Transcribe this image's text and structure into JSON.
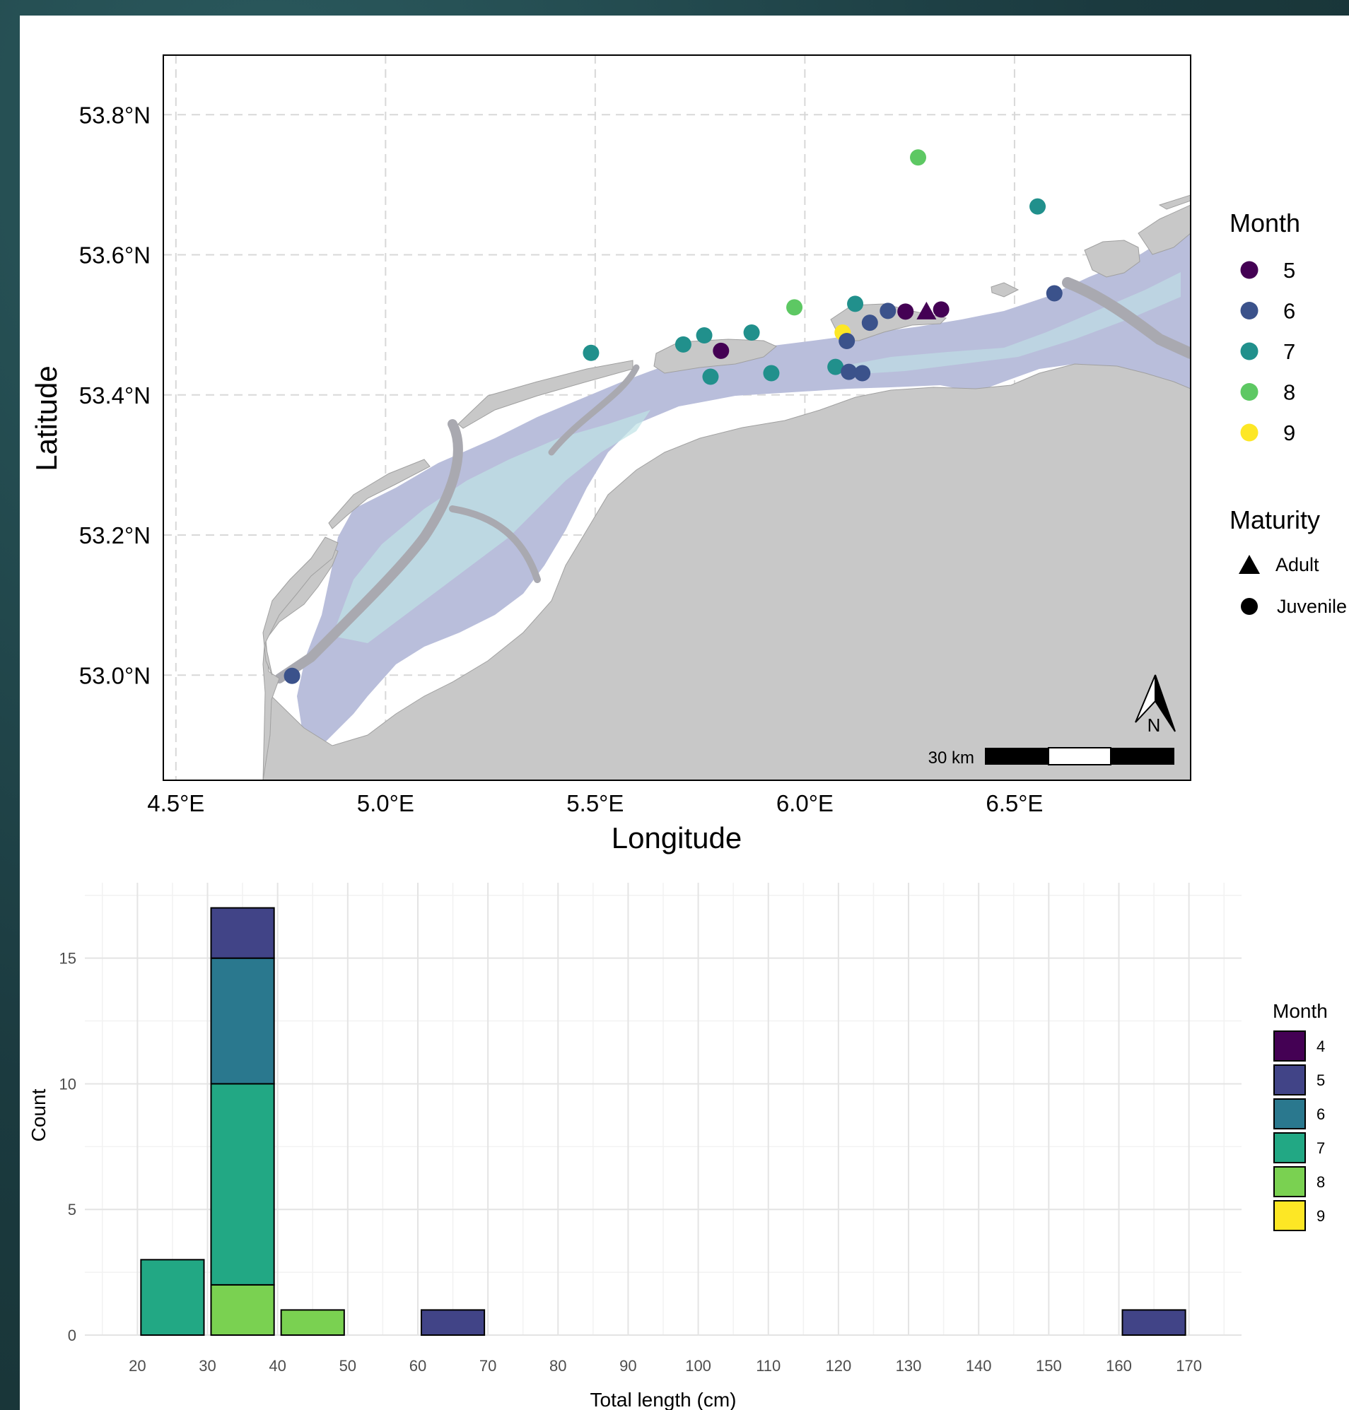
{
  "colors": {
    "month_map": {
      "5": "#440154",
      "6": "#3b528b",
      "7": "#21908c",
      "8": "#5dc863",
      "9": "#fde725"
    },
    "month_hist": {
      "4": "#440154",
      "5": "#414487",
      "6": "#2a788e",
      "7": "#22a884",
      "8": "#7ad151",
      "9": "#fde725"
    },
    "land": "#c8c8c8",
    "wadden": "#b9bedb",
    "wadden_light": "#bfe3e6",
    "channel": "#b0b0b4"
  },
  "chart_data": [
    {
      "type": "scatter",
      "title": "",
      "xlabel": "Longitude",
      "ylabel": "Latitude",
      "xlim": [
        4.47,
        6.92
      ],
      "ylim": [
        52.85,
        53.885
      ],
      "x_ticks": [
        4.5,
        5.0,
        5.5,
        6.0,
        6.5
      ],
      "x_tick_labels": [
        "4.5°E",
        "5.0°E",
        "5.5°E",
        "6.0°E",
        "6.5°E"
      ],
      "y_ticks": [
        53.0,
        53.2,
        53.4,
        53.6,
        53.8
      ],
      "y_tick_labels": [
        "53.0°N",
        "53.2°N",
        "53.4°N",
        "53.6°N",
        "53.8°N"
      ],
      "grid": true,
      "scale_bar_label": "30 km",
      "north_arrow_label": "N",
      "legend_month": {
        "title": "Month",
        "entries": [
          "5",
          "6",
          "7",
          "8",
          "9"
        ]
      },
      "legend_maturity": {
        "title": "Maturity",
        "entries": [
          "Adult",
          "Juvenile"
        ]
      },
      "points": [
        {
          "lon": 6.27,
          "lat": 53.739,
          "month": 8,
          "maturity": "Juvenile"
        },
        {
          "lon": 6.555,
          "lat": 53.669,
          "month": 7,
          "maturity": "Juvenile"
        },
        {
          "lon": 6.595,
          "lat": 53.545,
          "month": 6,
          "maturity": "Juvenile"
        },
        {
          "lon": 5.49,
          "lat": 53.46,
          "month": 7,
          "maturity": "Juvenile"
        },
        {
          "lon": 5.71,
          "lat": 53.472,
          "month": 7,
          "maturity": "Juvenile"
        },
        {
          "lon": 5.76,
          "lat": 53.485,
          "month": 7,
          "maturity": "Juvenile"
        },
        {
          "lon": 5.775,
          "lat": 53.426,
          "month": 7,
          "maturity": "Juvenile"
        },
        {
          "lon": 5.8,
          "lat": 53.463,
          "month": 5,
          "maturity": "Juvenile"
        },
        {
          "lon": 5.873,
          "lat": 53.489,
          "month": 7,
          "maturity": "Juvenile"
        },
        {
          "lon": 5.92,
          "lat": 53.431,
          "month": 7,
          "maturity": "Juvenile"
        },
        {
          "lon": 5.975,
          "lat": 53.525,
          "month": 8,
          "maturity": "Juvenile"
        },
        {
          "lon": 6.073,
          "lat": 53.44,
          "month": 7,
          "maturity": "Juvenile"
        },
        {
          "lon": 6.09,
          "lat": 53.489,
          "month": 9,
          "maturity": "Juvenile"
        },
        {
          "lon": 6.1,
          "lat": 53.477,
          "month": 6,
          "maturity": "Juvenile"
        },
        {
          "lon": 6.105,
          "lat": 53.433,
          "month": 6,
          "maturity": "Juvenile"
        },
        {
          "lon": 6.137,
          "lat": 53.431,
          "month": 6,
          "maturity": "Juvenile"
        },
        {
          "lon": 6.12,
          "lat": 53.53,
          "month": 7,
          "maturity": "Juvenile"
        },
        {
          "lon": 6.155,
          "lat": 53.503,
          "month": 6,
          "maturity": "Juvenile"
        },
        {
          "lon": 6.198,
          "lat": 53.52,
          "month": 6,
          "maturity": "Juvenile"
        },
        {
          "lon": 6.24,
          "lat": 53.519,
          "month": 5,
          "maturity": "Juvenile"
        },
        {
          "lon": 6.29,
          "lat": 53.519,
          "month": 5,
          "maturity": "Adult"
        },
        {
          "lon": 6.325,
          "lat": 53.522,
          "month": 5,
          "maturity": "Juvenile"
        },
        {
          "lon": 4.777,
          "lat": 52.999,
          "month": 6,
          "maturity": "Juvenile"
        }
      ]
    },
    {
      "type": "bar",
      "stacked": true,
      "title": "",
      "xlabel": "Total length (cm)",
      "ylabel": "Count",
      "xlim": [
        12.5,
        177.5
      ],
      "ylim": [
        0,
        18
      ],
      "x_ticks": [
        20,
        30,
        40,
        50,
        60,
        70,
        80,
        90,
        100,
        110,
        120,
        130,
        140,
        150,
        160,
        170
      ],
      "x_tick_labels": [
        "20",
        "30",
        "40",
        "50",
        "60",
        "70",
        "80",
        "90",
        "100",
        "110",
        "120",
        "130",
        "140",
        "150",
        "160",
        "170"
      ],
      "y_ticks": [
        0,
        5,
        10,
        15
      ],
      "y_tick_labels": [
        "0",
        "5",
        "10",
        "15"
      ],
      "grid": true,
      "legend": {
        "title": "Month",
        "entries": [
          "4",
          "5",
          "6",
          "7",
          "8",
          "9"
        ]
      },
      "bins": [
        {
          "x0": 20,
          "x1": 30,
          "segments": [
            {
              "month": 7,
              "count": 3
            }
          ]
        },
        {
          "x0": 30,
          "x1": 40,
          "segments": [
            {
              "month": 8,
              "count": 2
            },
            {
              "month": 7,
              "count": 8
            },
            {
              "month": 6,
              "count": 5
            },
            {
              "month": 5,
              "count": 2
            }
          ]
        },
        {
          "x0": 40,
          "x1": 50,
          "segments": [
            {
              "month": 8,
              "count": 1
            }
          ]
        },
        {
          "x0": 60,
          "x1": 70,
          "segments": [
            {
              "month": 5,
              "count": 1
            }
          ]
        },
        {
          "x0": 160,
          "x1": 170,
          "segments": [
            {
              "month": 5,
              "count": 1
            }
          ]
        }
      ]
    }
  ]
}
